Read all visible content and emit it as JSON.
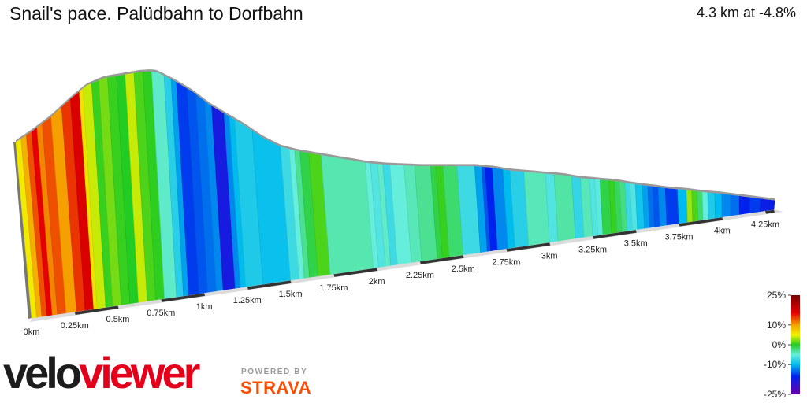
{
  "header": {
    "title": "Snail's pace. Palüdbahn to Dorfbahn",
    "summary": "4.3 km at -4.8%"
  },
  "branding": {
    "logo_part1": "velo",
    "logo_part2": "viewer",
    "powered_by": "POWERED BY",
    "partner": "STRAVA"
  },
  "legend": {
    "labels": [
      "25%",
      "10%",
      "0%",
      "-10%",
      "-25%"
    ],
    "values": [
      25,
      10,
      0,
      -10,
      -25
    ],
    "stops": [
      {
        "grade": 25,
        "color": "#7a0000"
      },
      {
        "grade": 16,
        "color": "#e60000"
      },
      {
        "grade": 10,
        "color": "#f5a000"
      },
      {
        "grade": 5,
        "color": "#f2f200"
      },
      {
        "grade": 0,
        "color": "#22cc22"
      },
      {
        "grade": -5,
        "color": "#66eedd"
      },
      {
        "grade": -10,
        "color": "#00bbee"
      },
      {
        "grade": -16,
        "color": "#0022ee"
      },
      {
        "grade": -25,
        "color": "#6600aa"
      }
    ]
  },
  "chart_data": {
    "type": "area",
    "x_unit": "km",
    "tick_labels": [
      "0km",
      "0.25km",
      "0.5km",
      "0.75km",
      "1km",
      "1.25km",
      "1.5km",
      "1.75km",
      "2km",
      "2.25km",
      "2.5km",
      "2.75km",
      "3km",
      "3.25km",
      "3.5km",
      "3.75km",
      "4km",
      "4.25km"
    ],
    "tick_values": [
      0,
      0.25,
      0.5,
      0.75,
      1,
      1.25,
      1.5,
      1.75,
      2,
      2.25,
      2.5,
      2.75,
      3,
      3.25,
      3.5,
      3.75,
      4,
      4.25
    ],
    "xlim": [
      0,
      4.3
    ],
    "total_distance_km": 4.3,
    "average_gradient_pct": -4.8,
    "segments": [
      {
        "start": 0.0,
        "end": 0.03,
        "grade": 5.5
      },
      {
        "start": 0.03,
        "end": 0.06,
        "grade": 9
      },
      {
        "start": 0.06,
        "end": 0.09,
        "grade": 13
      },
      {
        "start": 0.09,
        "end": 0.12,
        "grade": 16
      },
      {
        "start": 0.12,
        "end": 0.15,
        "grade": 11
      },
      {
        "start": 0.15,
        "end": 0.2,
        "grade": 13
      },
      {
        "start": 0.2,
        "end": 0.26,
        "grade": 10
      },
      {
        "start": 0.26,
        "end": 0.31,
        "grade": 14
      },
      {
        "start": 0.31,
        "end": 0.36,
        "grade": 17
      },
      {
        "start": 0.36,
        "end": 0.38,
        "grade": 6
      },
      {
        "start": 0.38,
        "end": 0.43,
        "grade": 4
      },
      {
        "start": 0.43,
        "end": 0.47,
        "grade": 0.5
      },
      {
        "start": 0.47,
        "end": 0.52,
        "grade": 2
      },
      {
        "start": 0.52,
        "end": 0.57,
        "grade": 0.5
      },
      {
        "start": 0.57,
        "end": 0.62,
        "grade": 0
      },
      {
        "start": 0.62,
        "end": 0.67,
        "grade": 4
      },
      {
        "start": 0.67,
        "end": 0.72,
        "grade": 1
      },
      {
        "start": 0.72,
        "end": 0.77,
        "grade": 0.3
      },
      {
        "start": 0.77,
        "end": 0.84,
        "grade": -4.5
      },
      {
        "start": 0.84,
        "end": 0.88,
        "grade": -8
      },
      {
        "start": 0.88,
        "end": 0.91,
        "grade": -11
      },
      {
        "start": 0.91,
        "end": 0.97,
        "grade": -15
      },
      {
        "start": 0.97,
        "end": 1.02,
        "grade": -14
      },
      {
        "start": 1.02,
        "end": 1.07,
        "grade": -13
      },
      {
        "start": 1.07,
        "end": 1.11,
        "grade": -12
      },
      {
        "start": 1.11,
        "end": 1.18,
        "grade": -18
      },
      {
        "start": 1.18,
        "end": 1.21,
        "grade": -12
      },
      {
        "start": 1.21,
        "end": 1.24,
        "grade": -10
      },
      {
        "start": 1.24,
        "end": 1.34,
        "grade": -8.5
      },
      {
        "start": 1.34,
        "end": 1.5,
        "grade": -9.5
      },
      {
        "start": 1.5,
        "end": 1.55,
        "grade": -7
      },
      {
        "start": 1.55,
        "end": 1.58,
        "grade": -5
      },
      {
        "start": 1.58,
        "end": 1.61,
        "grade": -3
      },
      {
        "start": 1.61,
        "end": 1.66,
        "grade": -1
      },
      {
        "start": 1.66,
        "end": 1.73,
        "grade": 1
      },
      {
        "start": 1.73,
        "end": 1.98,
        "grade": -3.8
      },
      {
        "start": 1.98,
        "end": 2.01,
        "grade": -5
      },
      {
        "start": 2.01,
        "end": 2.05,
        "grade": -6
      },
      {
        "start": 2.05,
        "end": 2.08,
        "grade": -4.5
      },
      {
        "start": 2.08,
        "end": 2.12,
        "grade": -7
      },
      {
        "start": 2.12,
        "end": 2.2,
        "grade": -5
      },
      {
        "start": 2.2,
        "end": 2.26,
        "grade": -4
      },
      {
        "start": 2.26,
        "end": 2.35,
        "grade": -3
      },
      {
        "start": 2.35,
        "end": 2.38,
        "grade": -1
      },
      {
        "start": 2.38,
        "end": 2.42,
        "grade": 0.5
      },
      {
        "start": 2.42,
        "end": 2.5,
        "grade": -2
      },
      {
        "start": 2.5,
        "end": 2.6,
        "grade": -7
      },
      {
        "start": 2.6,
        "end": 2.64,
        "grade": -11
      },
      {
        "start": 2.64,
        "end": 2.66,
        "grade": -14
      },
      {
        "start": 2.66,
        "end": 2.7,
        "grade": -16
      },
      {
        "start": 2.7,
        "end": 2.76,
        "grade": -12
      },
      {
        "start": 2.76,
        "end": 2.8,
        "grade": -10
      },
      {
        "start": 2.8,
        "end": 2.88,
        "grade": -8
      },
      {
        "start": 2.88,
        "end": 3.0,
        "grade": -4
      },
      {
        "start": 3.0,
        "end": 3.05,
        "grade": -6
      },
      {
        "start": 3.05,
        "end": 3.15,
        "grade": -3.5
      },
      {
        "start": 3.15,
        "end": 3.2,
        "grade": -7.5
      },
      {
        "start": 3.2,
        "end": 3.25,
        "grade": -4
      },
      {
        "start": 3.25,
        "end": 3.28,
        "grade": -6
      },
      {
        "start": 3.28,
        "end": 3.31,
        "grade": -5.5
      },
      {
        "start": 3.31,
        "end": 3.36,
        "grade": -1
      },
      {
        "start": 3.36,
        "end": 3.39,
        "grade": 0.5
      },
      {
        "start": 3.39,
        "end": 3.42,
        "grade": -1.5
      },
      {
        "start": 3.42,
        "end": 3.45,
        "grade": -2.5
      },
      {
        "start": 3.45,
        "end": 3.48,
        "grade": -7
      },
      {
        "start": 3.48,
        "end": 3.51,
        "grade": -6
      },
      {
        "start": 3.51,
        "end": 3.55,
        "grade": -9
      },
      {
        "start": 3.55,
        "end": 3.58,
        "grade": -11
      },
      {
        "start": 3.58,
        "end": 3.61,
        "grade": -13
      },
      {
        "start": 3.61,
        "end": 3.64,
        "grade": -14
      },
      {
        "start": 3.64,
        "end": 3.68,
        "grade": -12
      },
      {
        "start": 3.68,
        "end": 3.75,
        "grade": -15
      },
      {
        "start": 3.75,
        "end": 3.8,
        "grade": -10
      },
      {
        "start": 3.8,
        "end": 3.83,
        "grade": 3
      },
      {
        "start": 3.83,
        "end": 3.86,
        "grade": 1
      },
      {
        "start": 3.86,
        "end": 3.89,
        "grade": -2
      },
      {
        "start": 3.89,
        "end": 3.92,
        "grade": -5
      },
      {
        "start": 3.92,
        "end": 3.96,
        "grade": -8.5
      },
      {
        "start": 3.96,
        "end": 4.0,
        "grade": -10
      },
      {
        "start": 4.0,
        "end": 4.05,
        "grade": -12
      },
      {
        "start": 4.05,
        "end": 4.1,
        "grade": -13
      },
      {
        "start": 4.1,
        "end": 4.16,
        "grade": -16
      },
      {
        "start": 4.16,
        "end": 4.22,
        "grade": -15
      },
      {
        "start": 4.22,
        "end": 4.3,
        "grade": -17
      }
    ],
    "elevation_profile": {
      "distance_km": [
        0,
        0.1,
        0.2,
        0.3,
        0.4,
        0.5,
        0.6,
        0.7,
        0.76,
        0.8,
        0.9,
        1.0,
        1.1,
        1.2,
        1.3,
        1.4,
        1.5,
        1.6,
        1.7,
        1.8,
        1.9,
        2.0,
        2.1,
        2.2,
        2.3,
        2.4,
        2.5,
        2.6,
        2.7,
        2.8,
        2.9,
        3.0,
        3.1,
        3.2,
        3.3,
        3.4,
        3.5,
        3.6,
        3.7,
        3.8,
        3.9,
        4.0,
        4.1,
        4.2,
        4.3
      ],
      "relative_elevation": [
        0.39,
        0.47,
        0.56,
        0.67,
        0.77,
        0.82,
        0.84,
        0.86,
        0.865,
        0.86,
        0.8,
        0.73,
        0.64,
        0.57,
        0.5,
        0.42,
        0.36,
        0.33,
        0.31,
        0.29,
        0.27,
        0.25,
        0.24,
        0.235,
        0.23,
        0.23,
        0.23,
        0.23,
        0.22,
        0.2,
        0.19,
        0.18,
        0.17,
        0.15,
        0.14,
        0.13,
        0.11,
        0.095,
        0.08,
        0.07,
        0.055,
        0.045,
        0.03,
        0.015,
        0.0
      ]
    }
  }
}
